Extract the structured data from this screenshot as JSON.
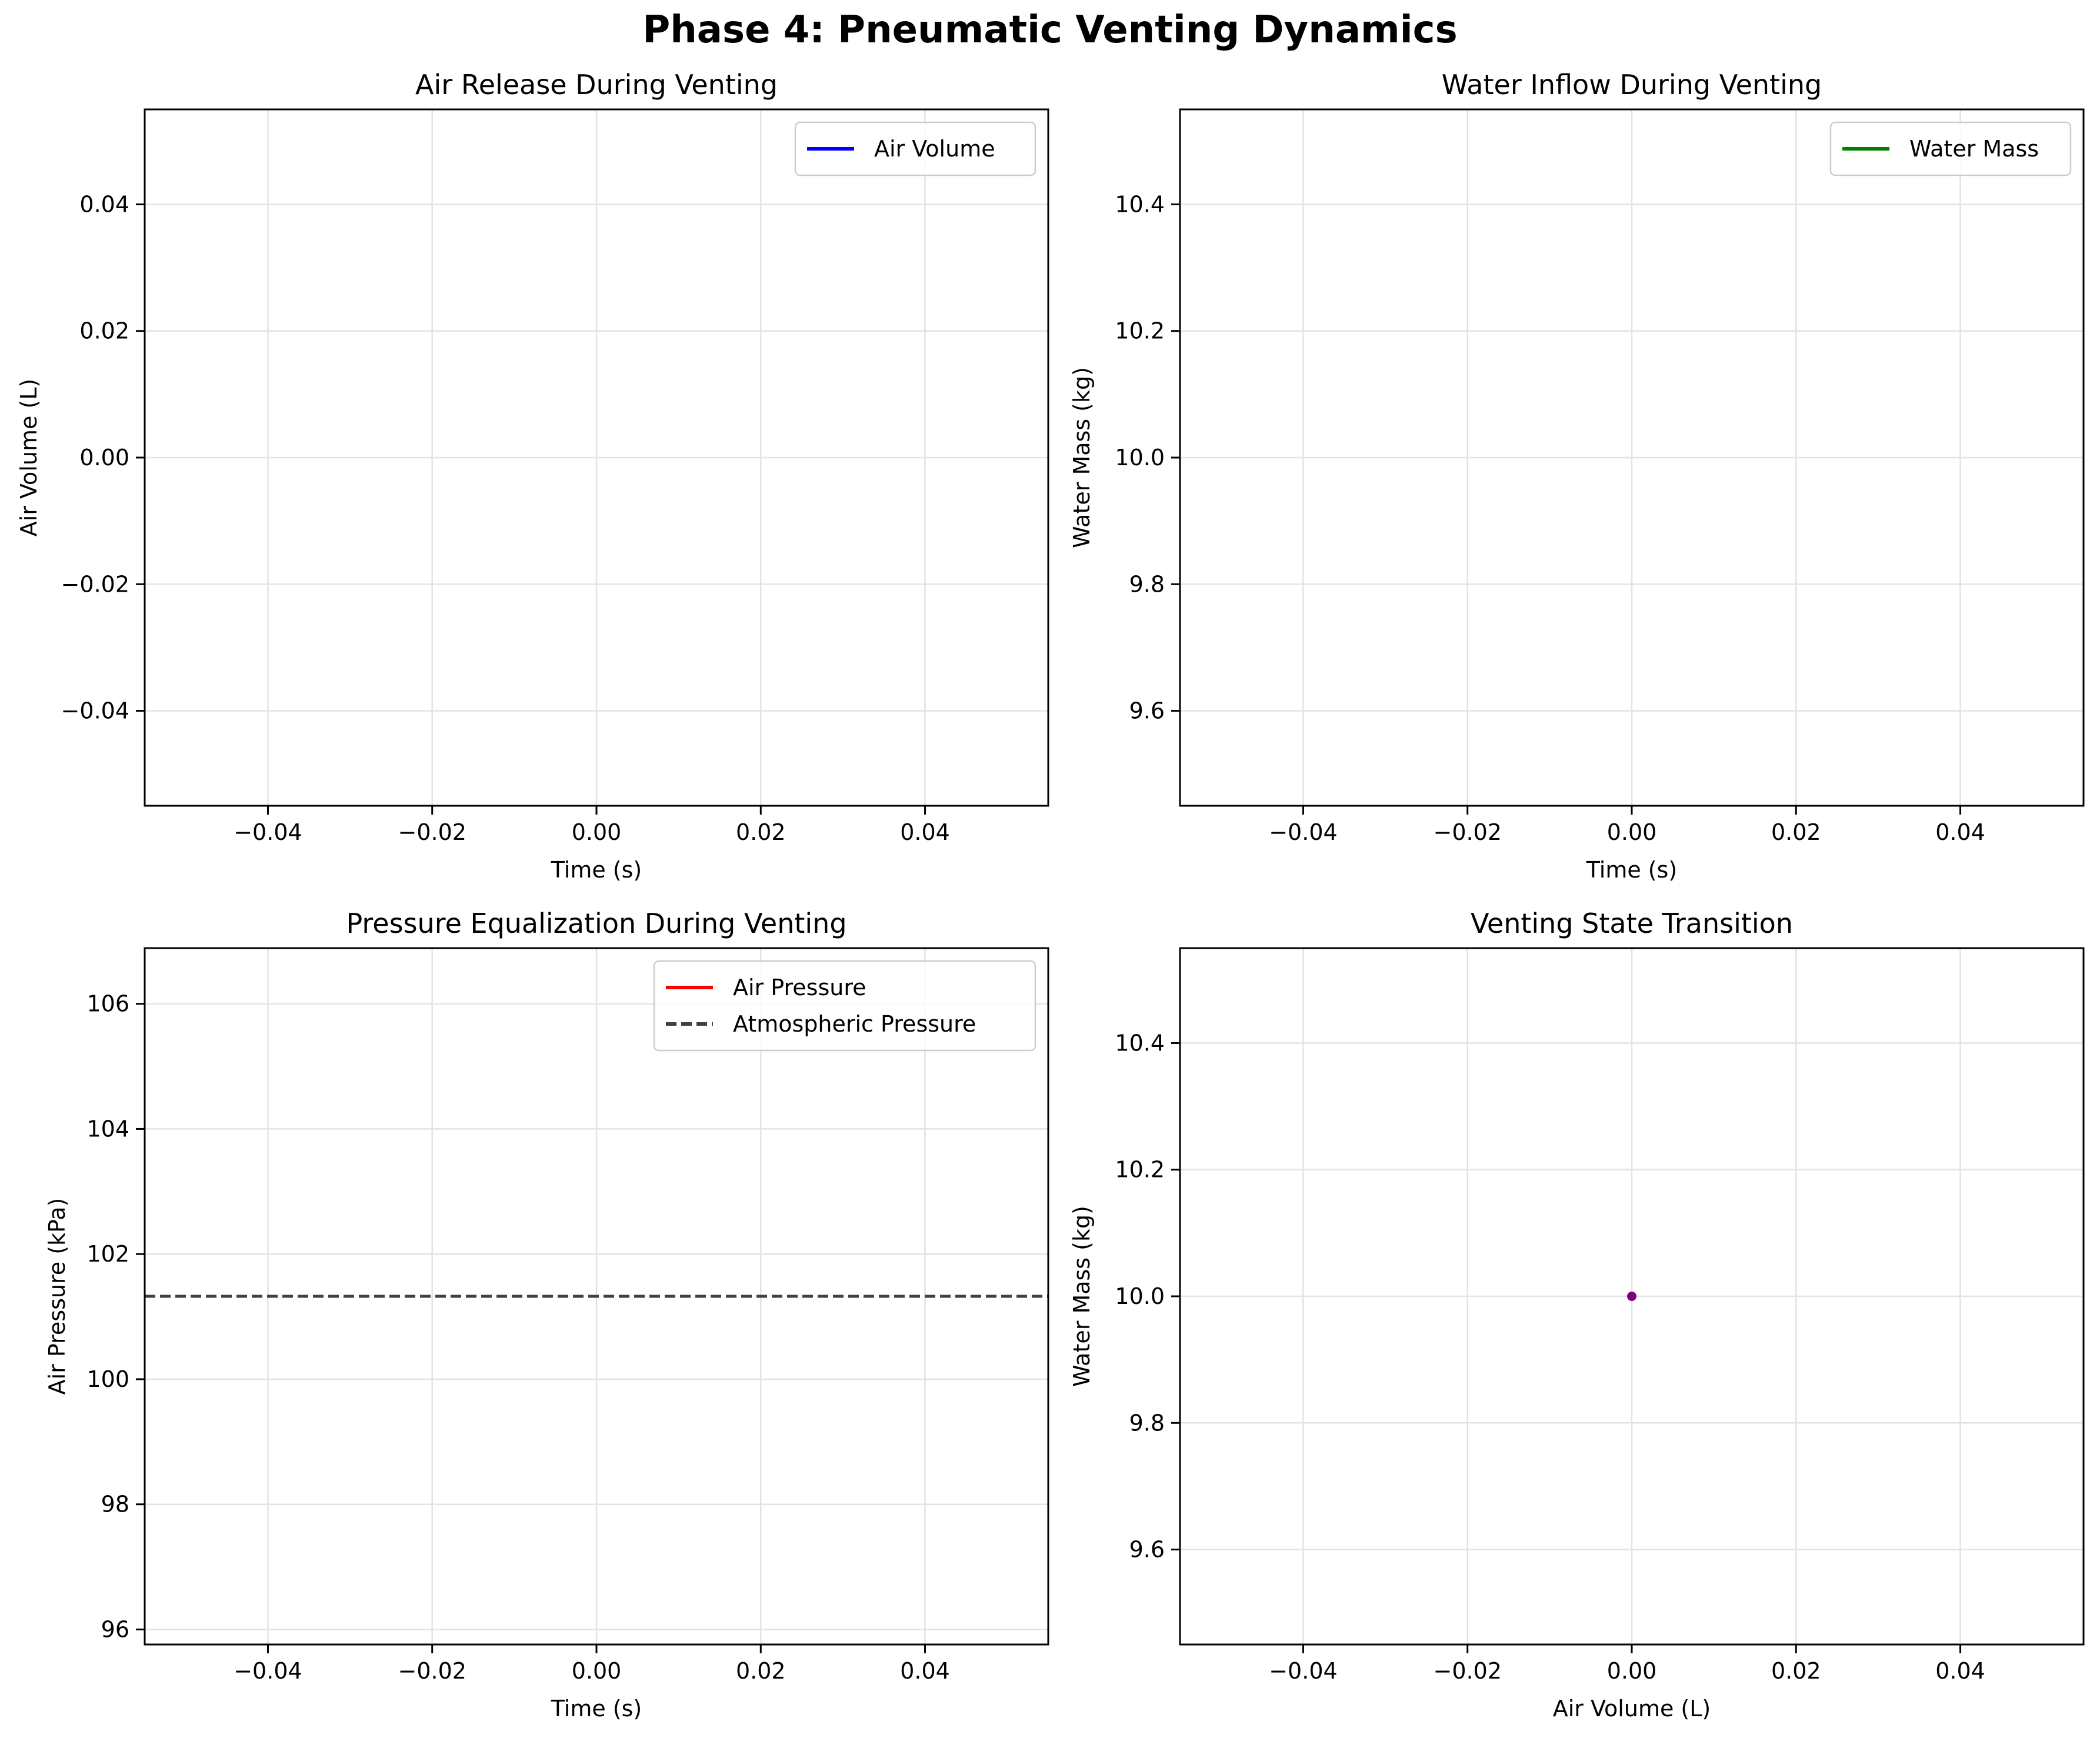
{
  "figure": {
    "title": "Phase 4: Pneumatic Venting Dynamics"
  },
  "chart_data": [
    {
      "type": "line",
      "title": "Air Release During Venting",
      "xlabel": "Time (s)",
      "ylabel": "Air Volume (L)",
      "xlim": [
        -0.055,
        0.055
      ],
      "ylim": [
        -0.055,
        0.055
      ],
      "xticks": [
        -0.04,
        -0.02,
        0.0,
        0.02,
        0.04
      ],
      "xtick_labels": [
        "−0.04",
        "−0.02",
        "0.00",
        "0.02",
        "0.04"
      ],
      "yticks": [
        -0.04,
        -0.02,
        0.0,
        0.02,
        0.04
      ],
      "ytick_labels": [
        "−0.04",
        "−0.02",
        "0.00",
        "0.02",
        "0.04"
      ],
      "grid": true,
      "legend": "upper-right",
      "series": [
        {
          "name": "Air Volume",
          "color": "#0000ff",
          "style": "solid",
          "x": [],
          "y": []
        }
      ]
    },
    {
      "type": "line",
      "title": "Water Inflow During Venting",
      "xlabel": "Time (s)",
      "ylabel": "Water Mass (kg)",
      "xlim": [
        -0.055,
        0.055
      ],
      "ylim": [
        9.45,
        10.55
      ],
      "xticks": [
        -0.04,
        -0.02,
        0.0,
        0.02,
        0.04
      ],
      "xtick_labels": [
        "−0.04",
        "−0.02",
        "0.00",
        "0.02",
        "0.04"
      ],
      "yticks": [
        9.6,
        9.8,
        10.0,
        10.2,
        10.4
      ],
      "ytick_labels": [
        "9.6",
        "9.8",
        "10.0",
        "10.2",
        "10.4"
      ],
      "grid": true,
      "legend": "upper-right",
      "series": [
        {
          "name": "Water Mass",
          "color": "#008000",
          "style": "solid",
          "x": [],
          "y": []
        }
      ]
    },
    {
      "type": "line",
      "title": "Pressure Equalization During Venting",
      "xlabel": "Time (s)",
      "ylabel": "Air Pressure (kPa)",
      "xlim": [
        -0.055,
        0.055
      ],
      "ylim": [
        95.76,
        106.89
      ],
      "xticks": [
        -0.04,
        -0.02,
        0.0,
        0.02,
        0.04
      ],
      "xtick_labels": [
        "−0.04",
        "−0.02",
        "0.00",
        "0.02",
        "0.04"
      ],
      "yticks": [
        96,
        98,
        100,
        102,
        104,
        106
      ],
      "ytick_labels": [
        "96",
        "98",
        "100",
        "102",
        "104",
        "106"
      ],
      "grid": true,
      "legend": "upper-right",
      "series": [
        {
          "name": "Air Pressure",
          "color": "#ff0000",
          "style": "solid",
          "x": [],
          "y": []
        },
        {
          "name": "Atmospheric Pressure",
          "color": "#404040",
          "style": "dashed",
          "hline": 101.325
        }
      ]
    },
    {
      "type": "scatter",
      "title": "Venting State Transition",
      "xlabel": "Air Volume (L)",
      "ylabel": "Water Mass (kg)",
      "xlim": [
        -0.055,
        0.055
      ],
      "ylim": [
        9.45,
        10.55
      ],
      "xticks": [
        -0.04,
        -0.02,
        0.0,
        0.02,
        0.04
      ],
      "xtick_labels": [
        "−0.04",
        "−0.02",
        "0.00",
        "0.02",
        "0.04"
      ],
      "yticks": [
        9.6,
        9.8,
        10.0,
        10.2,
        10.4
      ],
      "ytick_labels": [
        "9.6",
        "9.8",
        "10.0",
        "10.2",
        "10.4"
      ],
      "grid": true,
      "legend": "none",
      "series": [
        {
          "name": "",
          "color": "#800080",
          "style": "marker",
          "x": [
            0.0
          ],
          "y": [
            10.0
          ]
        }
      ]
    }
  ]
}
